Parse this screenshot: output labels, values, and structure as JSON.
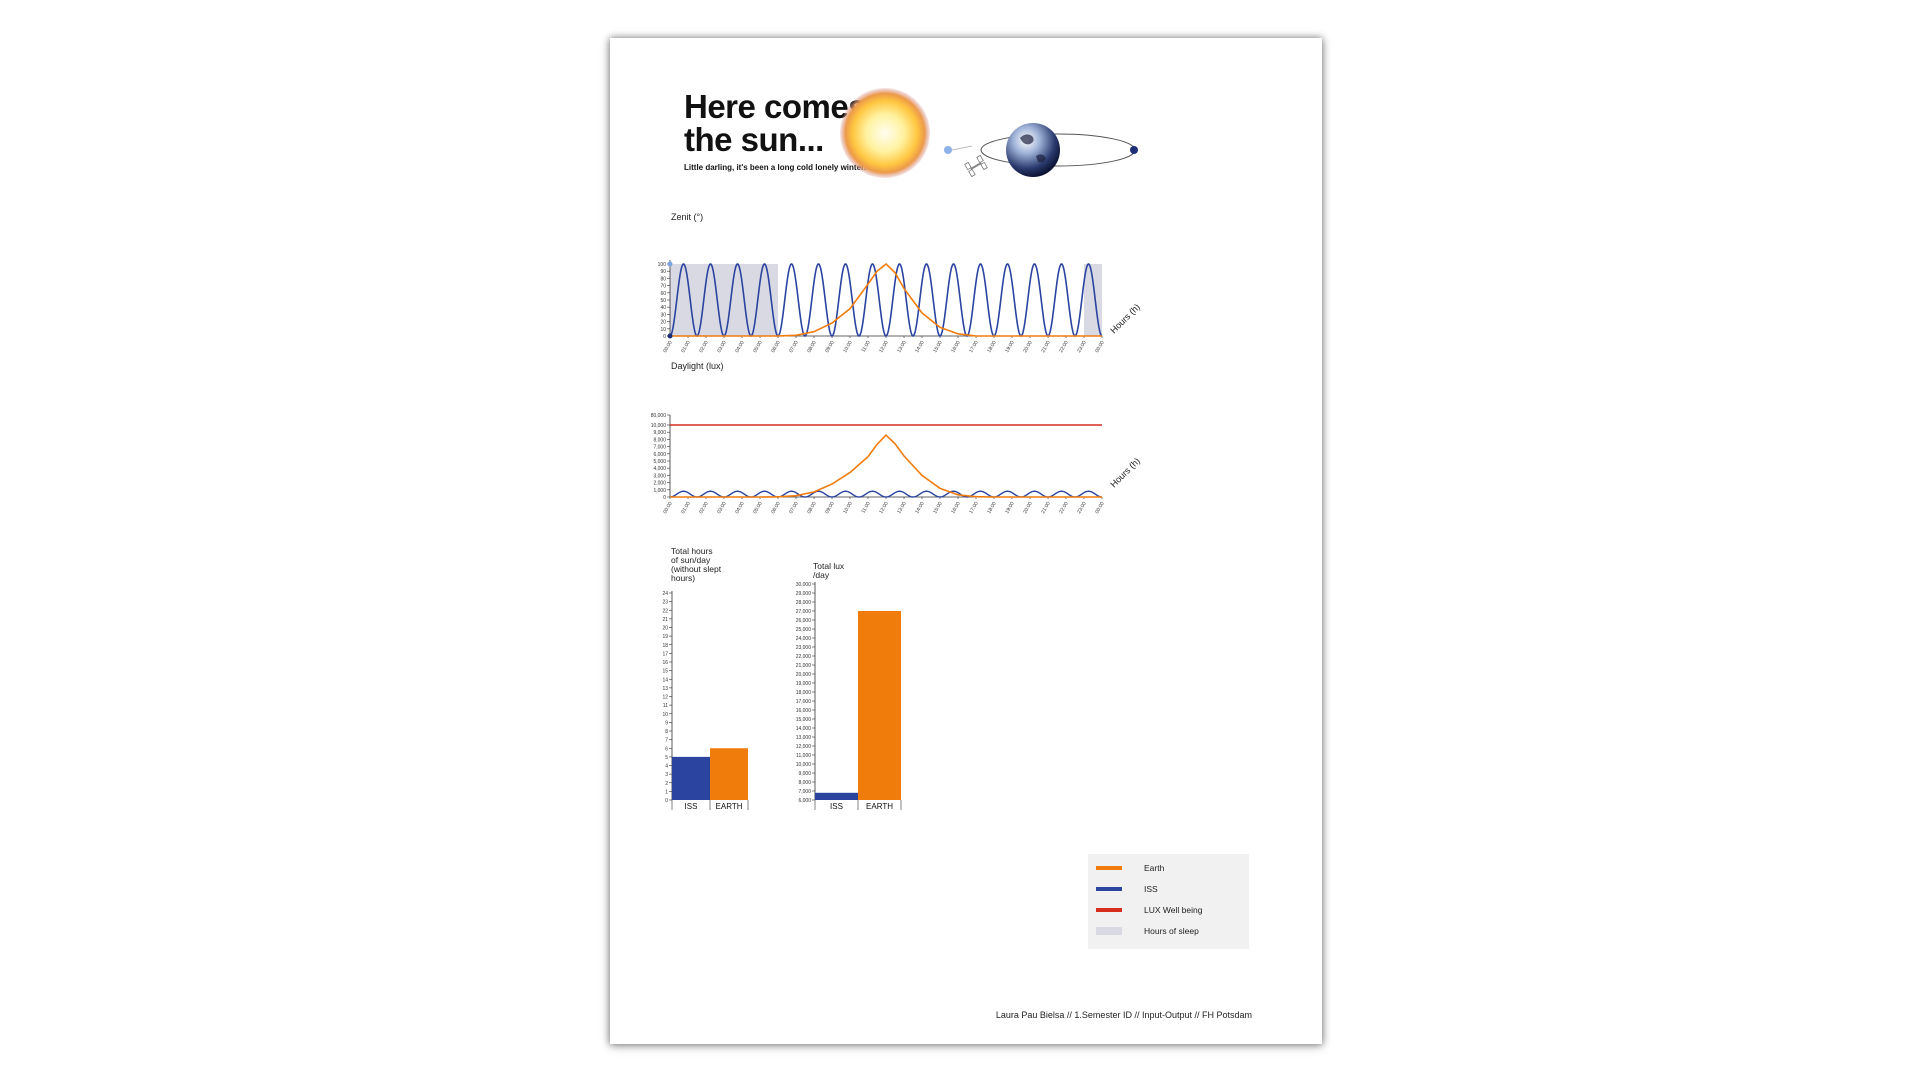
{
  "poster": {
    "title_line1": "Here comes",
    "title_line2": "the sun...",
    "subtitle": "Little darling, it's been a long cold lonely winter.",
    "credits": "Laura Pau Bielsa // 1.Semester ID // Input-Output // FH Potsdam"
  },
  "legend": {
    "items": [
      {
        "label": "Earth",
        "color": "#f07c0c"
      },
      {
        "label": "ISS",
        "color": "#2a44a0"
      },
      {
        "label": "LUX Well being",
        "color": "#d62f1e"
      },
      {
        "label": "Hours of sleep",
        "color": "#d9d9e4"
      }
    ]
  },
  "colors": {
    "earth": "#f07c0c",
    "iss": "#2a44a0",
    "lux": "#d62f1e",
    "sleep": "#d9d9e4"
  },
  "chart_data": [
    {
      "type": "line",
      "id": "zenit",
      "ylabel": "Zenit (°)",
      "xlabel": "Hours (h)",
      "ylim": [
        0,
        100
      ],
      "yticks": [
        0,
        10,
        20,
        30,
        40,
        50,
        60,
        70,
        80,
        90,
        100
      ],
      "x_tick_labels": [
        "00:00",
        "01:00",
        "02:00",
        "03:00",
        "04:00",
        "05:00",
        "06:00",
        "07:00",
        "08:00",
        "09:00",
        "10:00",
        "11:00",
        "12:00",
        "13:00",
        "14:00",
        "15:00",
        "16:00",
        "17:00",
        "18:00",
        "19:00",
        "20:00",
        "21:00",
        "22:00",
        "23:00",
        "00:00"
      ],
      "sleep_bands_hours": [
        [
          0,
          6
        ],
        [
          23,
          24
        ]
      ],
      "series": [
        {
          "name": "ISS",
          "kind": "orbit",
          "peak": 100,
          "orbits_per_day": 16
        },
        {
          "name": "Earth",
          "x": [
            0,
            5,
            6,
            7,
            8,
            9,
            10,
            11,
            11.5,
            12,
            12.5,
            13,
            14,
            15,
            16,
            17,
            18,
            24
          ],
          "y": [
            0,
            0,
            0,
            1,
            6,
            18,
            38,
            72,
            90,
            100,
            88,
            66,
            32,
            12,
            3,
            0,
            0,
            0
          ]
        }
      ]
    },
    {
      "type": "line",
      "id": "daylight",
      "ylabel": "Daylight (lux)",
      "xlabel": "Hours (h)",
      "yticks": [
        0,
        1000,
        2000,
        3000,
        4000,
        5000,
        6000,
        7000,
        8000,
        9000,
        10000,
        80000
      ],
      "ytick_labels": [
        "0",
        "1,000",
        "2,000",
        "3,000",
        "4,000",
        "5,000",
        "6,000",
        "7,000",
        "8,000",
        "9,000",
        "10,000",
        "80,000"
      ],
      "x_tick_labels": [
        "00:00",
        "01:00",
        "02:00",
        "03:00",
        "04:00",
        "05:00",
        "06:00",
        "07:00",
        "08:00",
        "09:00",
        "10:00",
        "11:00",
        "12:00",
        "13:00",
        "14:00",
        "15:00",
        "16:00",
        "17:00",
        "18:00",
        "19:00",
        "20:00",
        "21:00",
        "22:00",
        "23:00",
        "00:00"
      ],
      "series": [
        {
          "name": "LUX Well being",
          "constant": 10000
        },
        {
          "name": "ISS",
          "kind": "orbit",
          "peak": 800,
          "orbits_per_day": 16
        },
        {
          "name": "Earth",
          "x": [
            0,
            5,
            6,
            7,
            8,
            9,
            10,
            11,
            11.5,
            12,
            12.5,
            13,
            14,
            15,
            16,
            17,
            18,
            24
          ],
          "y": [
            0,
            0,
            20,
            180,
            700,
            1800,
            3400,
            5600,
            7300,
            8600,
            7400,
            5700,
            3000,
            1200,
            300,
            40,
            0,
            0
          ]
        }
      ]
    },
    {
      "type": "bar",
      "id": "hours",
      "title": "Total hours of sun/day (without slept hours)",
      "title_lines": [
        "Total hours",
        "of sun/day",
        "(without slept",
        "hours)"
      ],
      "categories": [
        "ISS",
        "EARTH"
      ],
      "values": [
        5,
        6
      ],
      "ylim": [
        0,
        24
      ],
      "yticks": [
        0,
        1,
        2,
        3,
        4,
        5,
        6,
        7,
        8,
        9,
        10,
        11,
        12,
        13,
        14,
        15,
        16,
        17,
        18,
        19,
        20,
        21,
        22,
        23,
        24
      ]
    },
    {
      "type": "bar",
      "id": "lux",
      "title": "Total lux /day",
      "title_lines": [
        "Total lux",
        "/day"
      ],
      "categories": [
        "ISS",
        "EARTH"
      ],
      "values": [
        6800,
        27000
      ],
      "ylim": [
        6000,
        30000
      ],
      "yticks": [
        6000,
        7000,
        8000,
        9000,
        10000,
        11000,
        12000,
        13000,
        14000,
        15000,
        16000,
        17000,
        18000,
        19000,
        20000,
        21000,
        22000,
        23000,
        24000,
        25000,
        26000,
        27000,
        28000,
        29000,
        30000
      ],
      "ytick_labels": [
        "6,000",
        "7,000",
        "8,000",
        "9,000",
        "10,000",
        "11,000",
        "12,000",
        "13,000",
        "14,000",
        "15,000",
        "16,000",
        "17,000",
        "18,000",
        "19,000",
        "20,000",
        "21,000",
        "22,000",
        "23,000",
        "24,000",
        "25,000",
        "26,000",
        "27,000",
        "28,000",
        "29,000",
        "30,000"
      ]
    }
  ]
}
